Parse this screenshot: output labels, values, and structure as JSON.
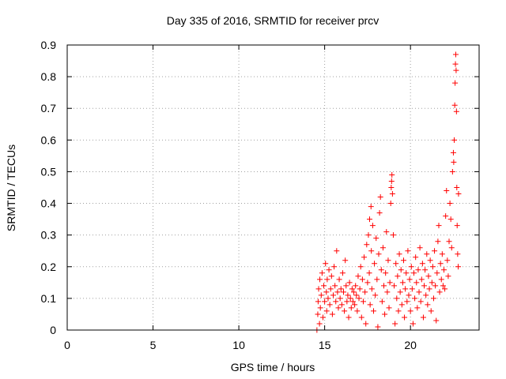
{
  "chart_data": {
    "type": "scatter",
    "title": "Day 335 of 2016, SRMTID for receiver prcv",
    "xlabel": "GPS time / hours",
    "ylabel": "SRMTID / TECUs",
    "xlim": [
      0,
      24
    ],
    "ylim": [
      0,
      0.9
    ],
    "xticks": [
      0,
      5,
      10,
      15,
      20
    ],
    "yticks": [
      0,
      0.1,
      0.2,
      0.3,
      0.4,
      0.5,
      0.6,
      0.7,
      0.8,
      0.9
    ],
    "xtick_labels": [
      "0",
      "5",
      "10",
      "15",
      "20"
    ],
    "ytick_labels": [
      "0",
      "0.1",
      "0.2",
      "0.3",
      "0.4",
      "0.5",
      "0.6",
      "0.7",
      "0.8",
      "0.9"
    ],
    "grid": true,
    "marker": "+",
    "color": "#ff0000",
    "series": [
      {
        "name": "SRMTID",
        "points": [
          [
            14.55,
            0.0
          ],
          [
            14.6,
            0.05
          ],
          [
            14.62,
            0.09
          ],
          [
            14.65,
            0.13
          ],
          [
            14.7,
            0.02
          ],
          [
            14.72,
            0.16
          ],
          [
            14.75,
            0.07
          ],
          [
            14.8,
            0.11
          ],
          [
            14.85,
            0.18
          ],
          [
            14.9,
            0.04
          ],
          [
            14.95,
            0.14
          ],
          [
            15.0,
            0.09
          ],
          [
            15.05,
            0.21
          ],
          [
            15.1,
            0.12
          ],
          [
            15.12,
            0.06
          ],
          [
            15.15,
            0.16
          ],
          [
            15.2,
            0.1
          ],
          [
            15.25,
            0.19
          ],
          [
            15.3,
            0.08
          ],
          [
            15.35,
            0.13
          ],
          [
            15.4,
            0.17
          ],
          [
            15.45,
            0.05
          ],
          [
            15.5,
            0.11
          ],
          [
            15.55,
            0.2
          ],
          [
            15.6,
            0.14
          ],
          [
            15.65,
            0.09
          ],
          [
            15.7,
            0.25
          ],
          [
            15.75,
            0.12
          ],
          [
            15.8,
            0.07
          ],
          [
            15.85,
            0.16
          ],
          [
            15.9,
            0.1
          ],
          [
            15.95,
            0.13
          ],
          [
            16.0,
            0.08
          ],
          [
            16.05,
            0.18
          ],
          [
            16.1,
            0.12
          ],
          [
            16.15,
            0.06
          ],
          [
            16.2,
            0.22
          ],
          [
            16.25,
            0.14
          ],
          [
            16.3,
            0.09
          ],
          [
            16.35,
            0.11
          ],
          [
            16.4,
            0.04
          ],
          [
            16.45,
            0.15
          ],
          [
            16.5,
            0.1
          ],
          [
            16.55,
            0.07
          ],
          [
            16.6,
            0.13
          ],
          [
            16.65,
            0.09
          ],
          [
            16.7,
            0.12
          ],
          [
            16.75,
            0.08
          ],
          [
            16.8,
            0.14
          ],
          [
            16.85,
            0.11
          ],
          [
            16.9,
            0.06
          ],
          [
            16.95,
            0.17
          ],
          [
            17.0,
            0.1
          ],
          [
            17.05,
            0.13
          ],
          [
            17.1,
            0.2
          ],
          [
            17.15,
            0.04
          ],
          [
            17.2,
            0.16
          ],
          [
            17.25,
            0.09
          ],
          [
            17.3,
            0.23
          ],
          [
            17.35,
            0.12
          ],
          [
            17.4,
            0.02
          ],
          [
            17.45,
            0.27
          ],
          [
            17.5,
            0.15
          ],
          [
            17.55,
            0.3
          ],
          [
            17.6,
            0.18
          ],
          [
            17.62,
            0.35
          ],
          [
            17.65,
            0.08
          ],
          [
            17.7,
            0.39
          ],
          [
            17.72,
            0.25
          ],
          [
            17.75,
            0.13
          ],
          [
            17.8,
            0.33
          ],
          [
            17.85,
            0.06
          ],
          [
            17.9,
            0.21
          ],
          [
            17.95,
            0.11
          ],
          [
            18.0,
            0.29
          ],
          [
            18.05,
            0.16
          ],
          [
            18.1,
            0.01
          ],
          [
            18.15,
            0.24
          ],
          [
            18.2,
            0.37
          ],
          [
            18.25,
            0.42
          ],
          [
            18.3,
            0.19
          ],
          [
            18.35,
            0.09
          ],
          [
            18.4,
            0.26
          ],
          [
            18.45,
            0.14
          ],
          [
            18.5,
            0.05
          ],
          [
            18.55,
            0.18
          ],
          [
            18.6,
            0.31
          ],
          [
            18.65,
            0.12
          ],
          [
            18.7,
            0.22
          ],
          [
            18.75,
            0.07
          ],
          [
            18.8,
            0.15
          ],
          [
            18.85,
            0.4
          ],
          [
            18.88,
            0.45
          ],
          [
            18.9,
            0.47
          ],
          [
            18.92,
            0.49
          ],
          [
            18.95,
            0.43
          ],
          [
            19.0,
            0.3
          ],
          [
            19.05,
            0.14
          ],
          [
            19.1,
            0.02
          ],
          [
            19.15,
            0.21
          ],
          [
            19.2,
            0.1
          ],
          [
            19.25,
            0.17
          ],
          [
            19.3,
            0.06
          ],
          [
            19.35,
            0.24
          ],
          [
            19.4,
            0.12
          ],
          [
            19.45,
            0.19
          ],
          [
            19.5,
            0.08
          ],
          [
            19.55,
            0.15
          ],
          [
            19.6,
            0.22
          ],
          [
            19.65,
            0.04
          ],
          [
            19.7,
            0.13
          ],
          [
            19.75,
            0.18
          ],
          [
            19.8,
            0.09
          ],
          [
            19.85,
            0.25
          ],
          [
            19.9,
            0.11
          ],
          [
            19.95,
            0.16
          ],
          [
            20.0,
            0.06
          ],
          [
            20.05,
            0.2
          ],
          [
            20.1,
            0.13
          ],
          [
            20.15,
            0.02
          ],
          [
            20.2,
            0.18
          ],
          [
            20.25,
            0.1
          ],
          [
            20.3,
            0.23
          ],
          [
            20.35,
            0.15
          ],
          [
            20.4,
            0.07
          ],
          [
            20.45,
            0.19
          ],
          [
            20.5,
            0.12
          ],
          [
            20.55,
            0.26
          ],
          [
            20.6,
            0.09
          ],
          [
            20.65,
            0.16
          ],
          [
            20.7,
            0.21
          ],
          [
            20.75,
            0.04
          ],
          [
            20.8,
            0.14
          ],
          [
            20.85,
            0.19
          ],
          [
            20.9,
            0.11
          ],
          [
            20.95,
            0.24
          ],
          [
            21.0,
            0.08
          ],
          [
            21.05,
            0.17
          ],
          [
            21.1,
            0.13
          ],
          [
            21.15,
            0.22
          ],
          [
            21.2,
            0.06
          ],
          [
            21.25,
            0.15
          ],
          [
            21.3,
            0.2
          ],
          [
            21.35,
            0.1
          ],
          [
            21.4,
            0.25
          ],
          [
            21.45,
            0.14
          ],
          [
            21.5,
            0.03
          ],
          [
            21.55,
            0.18
          ],
          [
            21.6,
            0.28
          ],
          [
            21.65,
            0.33
          ],
          [
            21.7,
            0.12
          ],
          [
            21.75,
            0.21
          ],
          [
            21.8,
            0.16
          ],
          [
            21.85,
            0.24
          ],
          [
            21.9,
            0.14
          ],
          [
            21.95,
            0.19
          ],
          [
            22.0,
            0.13
          ],
          [
            22.05,
            0.36
          ],
          [
            22.1,
            0.44
          ],
          [
            22.15,
            0.22
          ],
          [
            22.2,
            0.17
          ],
          [
            22.25,
            0.28
          ],
          [
            22.3,
            0.4
          ],
          [
            22.35,
            0.35
          ],
          [
            22.4,
            0.26
          ],
          [
            22.45,
            0.5
          ],
          [
            22.5,
            0.56
          ],
          [
            22.52,
            0.53
          ],
          [
            22.55,
            0.6
          ],
          [
            22.58,
            0.71
          ],
          [
            22.6,
            0.78
          ],
          [
            22.62,
            0.84
          ],
          [
            22.64,
            0.87
          ],
          [
            22.66,
            0.82
          ],
          [
            22.68,
            0.69
          ],
          [
            22.7,
            0.45
          ],
          [
            22.72,
            0.33
          ],
          [
            22.75,
            0.24
          ],
          [
            22.78,
            0.2
          ],
          [
            22.8,
            0.43
          ]
        ]
      }
    ]
  }
}
